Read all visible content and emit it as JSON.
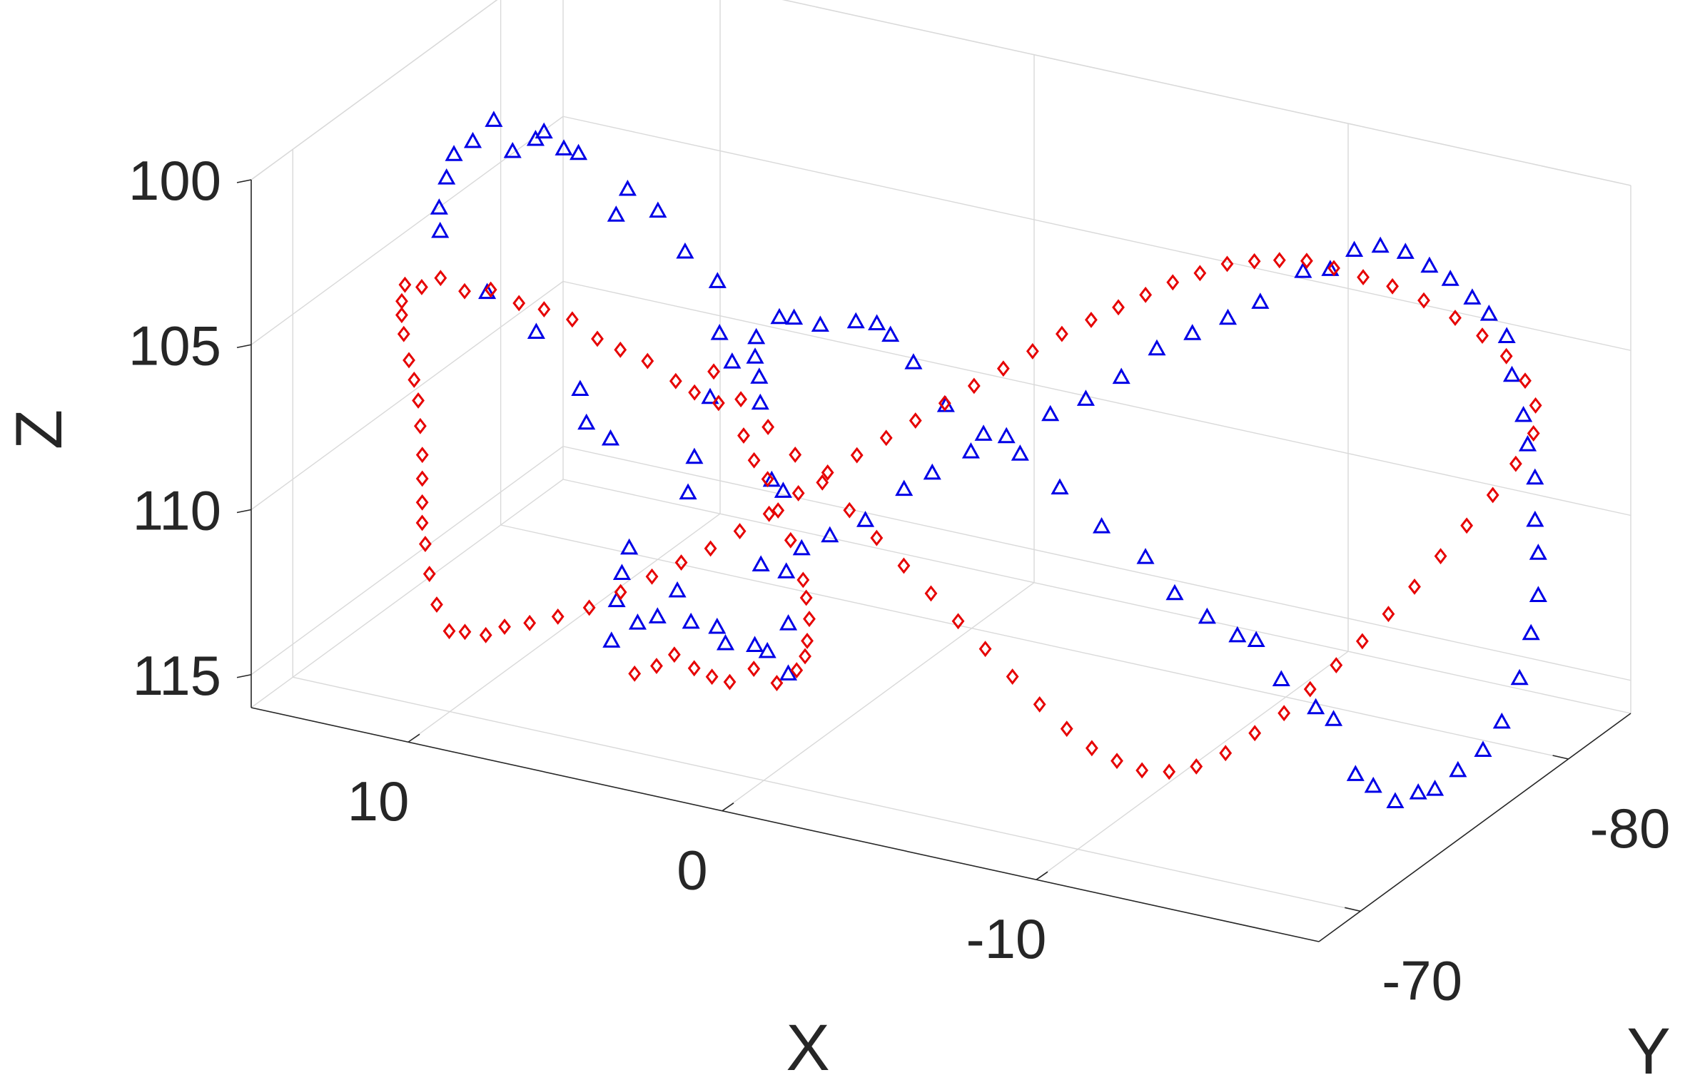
{
  "chart_data": {
    "type": "scatter",
    "projection": "3d",
    "xlabel": "X",
    "ylabel": "Y",
    "zlabel": "Z",
    "xlim": [
      -19,
      15
    ],
    "ylim": [
      -83,
      -68
    ],
    "zlim": [
      100,
      116
    ],
    "z_direction": "reverse",
    "grid": true,
    "x_ticks": [
      10,
      0,
      -10
    ],
    "x_tick_labels": [
      "10",
      "0",
      "-10"
    ],
    "y_ticks": [
      -80,
      -70
    ],
    "y_tick_labels": [
      "-80",
      "-70"
    ],
    "z_ticks": [
      100,
      105,
      110,
      115
    ],
    "z_tick_labels": [
      "100",
      "105",
      "110",
      "115"
    ],
    "series": [
      {
        "marker": "triangle",
        "color": "#0000e6",
        "points": [
          [
            7.5,
            -74,
            115.2
          ],
          [
            7.3,
            -74.2,
            113.2
          ],
          [
            7.4,
            -74.1,
            114.0
          ],
          [
            7.2,
            -74.4,
            112.5
          ],
          [
            6.8,
            -74.2,
            114.6
          ],
          [
            6.3,
            -74.4,
            114.4
          ],
          [
            5.8,
            -74.6,
            113.6
          ],
          [
            5.3,
            -74.5,
            114.4
          ],
          [
            4.6,
            -74.7,
            114.5
          ],
          [
            4.4,
            -74.8,
            115.0
          ],
          [
            3.4,
            -74.7,
            114.8
          ],
          [
            3.0,
            -74.7,
            114.9
          ],
          [
            2.4,
            -74.8,
            115.5
          ],
          [
            2.2,
            -74.5,
            113.8
          ],
          [
            2.0,
            -74.1,
            112.0
          ],
          [
            1.9,
            -73.8,
            109.4
          ],
          [
            2.0,
            -73.4,
            108.9
          ],
          [
            2.1,
            -73.0,
            106.4
          ],
          [
            2.0,
            -72.8,
            105.5
          ],
          [
            2.0,
            -72.6,
            104.8
          ],
          [
            3.0,
            -72.4,
            104.2
          ],
          [
            2.8,
            -72.0,
            102.4
          ],
          [
            3.7,
            -71.8,
            101.6
          ],
          [
            4.3,
            -71.4,
            100.3
          ],
          [
            5.0,
            -71.0,
            99.6
          ],
          [
            5.3,
            -70.9,
            100.4
          ],
          [
            6.3,
            -70.6,
            98.6
          ],
          [
            6.7,
            -70.5,
            98.5
          ],
          [
            7.2,
            -70.3,
            98.0
          ],
          [
            7.6,
            -70.5,
            98.4
          ],
          [
            8.2,
            -70.3,
            98.8
          ],
          [
            8.6,
            -70.0,
            97.8
          ],
          [
            9.4,
            -70.2,
            98.7
          ],
          [
            10.2,
            -70.5,
            99.4
          ],
          [
            10.7,
            -70.9,
            100.4
          ],
          [
            11.2,
            -71.3,
            101.6
          ],
          [
            11.5,
            -71.8,
            102.6
          ],
          [
            10.4,
            -72.4,
            104.5
          ],
          [
            9.3,
            -73.1,
            105.8
          ],
          [
            8.3,
            -73.7,
            107.6
          ],
          [
            7.9,
            -73.4,
            108.4
          ],
          [
            7.0,
            -73.2,
            108.6
          ],
          [
            4.4,
            -73.0,
            109.6
          ],
          [
            4.0,
            -72.7,
            108.3
          ],
          [
            3.3,
            -72.4,
            106.2
          ],
          [
            2.4,
            -72.1,
            104.8
          ],
          [
            1.3,
            -71.6,
            103.6
          ],
          [
            0.3,
            -71.2,
            102.6
          ],
          [
            -0.3,
            -71.0,
            102.4
          ],
          [
            -1.4,
            -70.6,
            102.2
          ],
          [
            -2.6,
            -70.5,
            101.8
          ],
          [
            -3.4,
            -70.3,
            101.6
          ],
          [
            -3.9,
            -70.2,
            101.8
          ],
          [
            -4.5,
            -70.4,
            102.6
          ],
          [
            -5.4,
            -70.6,
            103.8
          ],
          [
            -6.4,
            -70.9,
            104.6
          ],
          [
            -7.3,
            -71.3,
            105.2
          ],
          [
            -8.3,
            -71.7,
            106.2
          ],
          [
            -9.3,
            -72.2,
            107.4
          ],
          [
            -10.3,
            -72.8,
            108.4
          ],
          [
            -10.9,
            -73.3,
            109.6
          ],
          [
            -11.6,
            -73.8,
            110.4
          ],
          [
            -12.3,
            -74.2,
            111.0
          ],
          [
            -12.7,
            -74.5,
            111.2
          ],
          [
            -13.3,
            -74.8,
            112.4
          ],
          [
            -14.2,
            -75.1,
            113.2
          ],
          [
            -14.7,
            -75.2,
            113.5
          ],
          [
            -15.2,
            -75.5,
            115.2
          ],
          [
            -15.7,
            -75.6,
            115.5
          ],
          [
            -16.2,
            -75.9,
            116.0
          ],
          [
            -16.8,
            -76.1,
            115.7
          ],
          [
            -17.2,
            -76.3,
            115.6
          ],
          [
            -17.8,
            -76.5,
            115.0
          ],
          [
            -18.4,
            -76.8,
            114.4
          ],
          [
            -18.8,
            -77.1,
            113.6
          ],
          [
            -19.1,
            -77.5,
            112.4
          ],
          [
            -19.2,
            -77.9,
            111.2
          ],
          [
            -19.1,
            -78.4,
            110.3
          ],
          [
            -18.9,
            -78.7,
            109.2
          ],
          [
            -18.6,
            -79.0,
            108.4
          ],
          [
            -18.4,
            -79.3,
            107.3
          ],
          [
            -18.1,
            -79.4,
            106.4
          ],
          [
            -17.9,
            -79.5,
            105.6
          ],
          [
            -17.6,
            -79.4,
            104.4
          ],
          [
            -17.5,
            -79.3,
            103.2
          ],
          [
            -17.2,
            -78.9,
            102.4
          ],
          [
            -16.8,
            -78.7,
            101.9
          ],
          [
            -16.3,
            -78.4,
            101.3
          ],
          [
            -15.9,
            -78.0,
            100.8
          ],
          [
            -15.4,
            -77.6,
            100.3
          ],
          [
            -14.8,
            -77.3,
            100.1
          ],
          [
            -14.3,
            -76.8,
            100.1
          ],
          [
            -13.8,
            -76.4,
            100.6
          ],
          [
            -13.2,
            -76.0,
            100.6
          ],
          [
            -12.3,
            -75.3,
            101.4
          ],
          [
            -11.6,
            -74.8,
            101.8
          ],
          [
            -10.8,
            -74.3,
            102.2
          ],
          [
            -10.0,
            -73.8,
            102.6
          ],
          [
            -9.2,
            -73.3,
            103.4
          ],
          [
            -8.4,
            -72.8,
            104.0
          ],
          [
            -7.6,
            -72.3,
            104.4
          ],
          [
            -6.6,
            -71.7,
            105.0
          ],
          [
            -5.8,
            -71.2,
            105.4
          ],
          [
            -4.9,
            -70.7,
            106.0
          ],
          [
            -4.2,
            -70.4,
            106.5
          ],
          [
            -3.3,
            -69.9,
            107.4
          ],
          [
            -2.5,
            -69.4,
            107.8
          ],
          [
            -1.8,
            -69.1,
            108.2
          ],
          [
            -0.9,
            -68.5,
            108.6
          ]
        ]
      },
      {
        "marker": "diamond",
        "color": "#e60000",
        "points": [
          [
            6.3,
            -73.3,
            115.6
          ],
          [
            5.8,
            -73.6,
            115.4
          ],
          [
            5.3,
            -73.7,
            115.0
          ],
          [
            4.8,
            -73.9,
            115.4
          ],
          [
            4.3,
            -74.0,
            115.6
          ],
          [
            3.8,
            -74.1,
            115.7
          ],
          [
            3.1,
            -74.2,
            115.2
          ],
          [
            2.5,
            -74.4,
            115.6
          ],
          [
            2.0,
            -74.6,
            115.2
          ],
          [
            1.6,
            -74.4,
            114.6
          ],
          [
            1.4,
            -74.2,
            114.0
          ],
          [
            1.2,
            -74.0,
            113.2
          ],
          [
            1.1,
            -73.7,
            112.4
          ],
          [
            1.0,
            -73.4,
            111.7
          ],
          [
            1.2,
            -73.1,
            110.4
          ],
          [
            1.4,
            -72.8,
            109.4
          ],
          [
            1.6,
            -72.6,
            108.4
          ],
          [
            1.9,
            -72.4,
            107.8
          ],
          [
            2.1,
            -72.2,
            107.0
          ],
          [
            2.7,
            -71.9,
            106.0
          ],
          [
            3.2,
            -71.5,
            105.6
          ],
          [
            3.6,
            -71.2,
            105.2
          ],
          [
            4.3,
            -70.9,
            104.6
          ],
          [
            4.9,
            -70.5,
            104.2
          ],
          [
            5.5,
            -70.3,
            103.9
          ],
          [
            6.1,
            -70.0,
            103.3
          ],
          [
            6.8,
            -69.7,
            103.0
          ],
          [
            7.4,
            -69.4,
            102.8
          ],
          [
            8.1,
            -69.1,
            102.4
          ],
          [
            8.8,
            -68.9,
            102.5
          ],
          [
            9.5,
            -68.8,
            102.2
          ],
          [
            10.1,
            -68.8,
            102.6
          ],
          [
            10.7,
            -68.9,
            102.7
          ],
          [
            11.0,
            -69.2,
            103.4
          ],
          [
            11.2,
            -69.5,
            104.0
          ],
          [
            11.4,
            -69.9,
            104.8
          ],
          [
            11.5,
            -70.3,
            105.8
          ],
          [
            11.6,
            -70.7,
            106.6
          ],
          [
            11.8,
            -71.2,
            107.5
          ],
          [
            12.0,
            -71.6,
            108.5
          ],
          [
            12.2,
            -72.0,
            109.6
          ],
          [
            12.4,
            -72.3,
            110.5
          ],
          [
            12.6,
            -72.6,
            111.4
          ],
          [
            12.8,
            -72.9,
            112.2
          ],
          [
            12.9,
            -73.2,
            113.0
          ],
          [
            12.9,
            -73.4,
            114.0
          ],
          [
            12.8,
            -73.6,
            115.0
          ],
          [
            12.6,
            -73.9,
            115.9
          ],
          [
            12.3,
            -74.2,
            116.0
          ],
          [
            11.9,
            -74.6,
            116.2
          ],
          [
            11.5,
            -74.9,
            116.0
          ],
          [
            10.9,
            -75.2,
            115.9
          ],
          [
            10.2,
            -75.5,
            115.7
          ],
          [
            9.4,
            -75.8,
            115.4
          ],
          [
            8.6,
            -76.1,
            114.9
          ],
          [
            7.8,
            -76.4,
            114.4
          ],
          [
            7.0,
            -76.6,
            113.9
          ],
          [
            6.2,
            -76.8,
            113.4
          ],
          [
            5.4,
            -77.0,
            112.8
          ],
          [
            4.6,
            -77.2,
            112.2
          ],
          [
            3.8,
            -77.4,
            111.5
          ],
          [
            3.0,
            -77.6,
            110.8
          ],
          [
            2.2,
            -77.8,
            110.2
          ],
          [
            1.4,
            -78.0,
            109.6
          ],
          [
            0.6,
            -78.2,
            109.0
          ],
          [
            -0.2,
            -78.4,
            108.4
          ],
          [
            -1.0,
            -78.6,
            107.8
          ],
          [
            -1.8,
            -78.8,
            107.2
          ],
          [
            -2.6,
            -79.0,
            106.6
          ],
          [
            -3.4,
            -79.2,
            106.0
          ],
          [
            -4.2,
            -79.4,
            105.5
          ],
          [
            -5.0,
            -79.5,
            105.0
          ],
          [
            -5.8,
            -79.6,
            104.5
          ],
          [
            -6.6,
            -79.7,
            104.0
          ],
          [
            -7.4,
            -79.8,
            103.6
          ],
          [
            -8.2,
            -79.9,
            103.2
          ],
          [
            -9.0,
            -80.0,
            103.0
          ],
          [
            -9.8,
            -80.0,
            102.8
          ],
          [
            -10.6,
            -80.1,
            102.7
          ],
          [
            -11.4,
            -80.2,
            102.8
          ],
          [
            -12.2,
            -80.4,
            103.0
          ],
          [
            -13.0,
            -80.6,
            103.2
          ],
          [
            -13.8,
            -80.9,
            103.6
          ],
          [
            -14.6,
            -81.2,
            104.1
          ],
          [
            -15.2,
            -81.6,
            104.7
          ],
          [
            -15.7,
            -82.0,
            105.4
          ],
          [
            -16.1,
            -82.3,
            106.2
          ],
          [
            -16.3,
            -82.5,
            107.0
          ],
          [
            -16.3,
            -82.4,
            107.8
          ],
          [
            -16.0,
            -82.0,
            108.6
          ],
          [
            -15.6,
            -81.5,
            109.4
          ],
          [
            -15.1,
            -81.0,
            110.2
          ],
          [
            -14.6,
            -80.5,
            111.0
          ],
          [
            -14.1,
            -80.0,
            111.8
          ],
          [
            -13.6,
            -79.5,
            112.5
          ],
          [
            -13.1,
            -79.0,
            113.2
          ],
          [
            -12.6,
            -78.5,
            113.8
          ],
          [
            -12.1,
            -78.0,
            114.4
          ],
          [
            -11.6,
            -77.5,
            115.0
          ],
          [
            -11.0,
            -77.0,
            115.5
          ],
          [
            -10.4,
            -76.5,
            116.0
          ],
          [
            -9.8,
            -76.0,
            116.3
          ],
          [
            -9.2,
            -75.6,
            116.4
          ],
          [
            -8.6,
            -75.2,
            116.3
          ],
          [
            -8.0,
            -74.9,
            116.0
          ],
          [
            -7.4,
            -74.6,
            115.6
          ],
          [
            -6.8,
            -74.3,
            115.0
          ],
          [
            -6.2,
            -73.9,
            114.2
          ],
          [
            -5.6,
            -73.5,
            113.3
          ],
          [
            -5.0,
            -73.1,
            112.4
          ],
          [
            -4.4,
            -72.7,
            111.5
          ],
          [
            -3.8,
            -72.3,
            110.6
          ],
          [
            -3.2,
            -71.9,
            109.7
          ],
          [
            -2.6,
            -71.5,
            108.8
          ],
          [
            -2.0,
            -71.1,
            107.9
          ],
          [
            -1.4,
            -70.7,
            107.0
          ],
          [
            -0.8,
            -70.3,
            106.1
          ],
          [
            -0.2,
            -69.9,
            105.2
          ],
          [
            0.4,
            -69.5,
            104.3
          ],
          [
            1.0,
            -69.1,
            103.4
          ]
        ]
      }
    ]
  }
}
